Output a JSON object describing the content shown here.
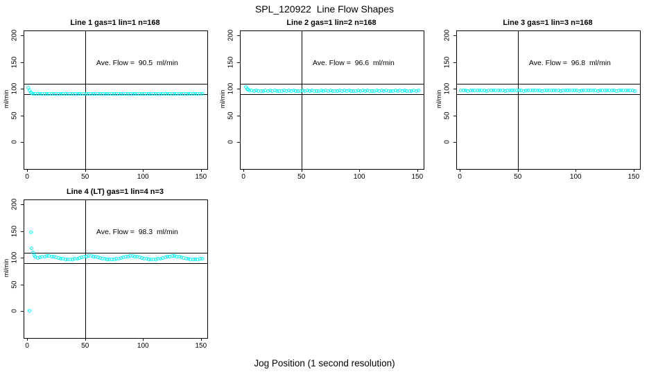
{
  "main_title": "SPL_120922  Line Flow Shapes",
  "xlabel": "Jog Position (1 second resolution)",
  "point_color": "#00FFFF",
  "chart_data": [
    {
      "type": "scatter",
      "title": "Line 1 gas=1 lin=1 n=168",
      "annotation": "Ave. Flow =  90.5  ml/min",
      "ave_flow_ml_min": 90.5,
      "ylabel": "ml/min",
      "x_ticks": [
        0,
        50,
        100,
        150
      ],
      "y_ticks": [
        0,
        50,
        100,
        150,
        200
      ],
      "xlim": [
        -2.5,
        155.5
      ],
      "ylim": [
        -50,
        208
      ],
      "vline": 50,
      "hlines": [
        90,
        110
      ],
      "legend": "none",
      "grid": false,
      "points": [
        [
          1,
          102.2
        ],
        [
          2,
          96.8
        ],
        [
          3,
          93.2
        ],
        [
          4,
          91.4
        ],
        [
          5,
          90.7
        ],
        [
          7,
          90.7
        ],
        [
          9,
          90.2
        ],
        [
          11,
          90.6
        ],
        [
          13,
          90.1
        ],
        [
          15,
          90.5
        ],
        [
          17,
          90.3
        ],
        [
          19,
          90.8
        ],
        [
          21,
          90.2
        ],
        [
          23,
          90.7
        ],
        [
          25,
          90.2
        ],
        [
          27,
          90.6
        ],
        [
          29,
          90.1
        ],
        [
          31,
          90.5
        ],
        [
          33,
          90.3
        ],
        [
          35,
          90.8
        ],
        [
          37,
          90.2
        ],
        [
          39,
          90.7
        ],
        [
          41,
          90.2
        ],
        [
          43,
          90.6
        ],
        [
          45,
          90.1
        ],
        [
          47,
          90.5
        ],
        [
          49,
          90.3
        ],
        [
          51,
          90.8
        ],
        [
          53,
          90.2
        ],
        [
          55,
          90.7
        ],
        [
          57,
          90.2
        ],
        [
          59,
          90.6
        ],
        [
          61,
          90.1
        ],
        [
          63,
          90.5
        ],
        [
          65,
          90.3
        ],
        [
          67,
          90.8
        ],
        [
          69,
          90.2
        ],
        [
          71,
          90.7
        ],
        [
          73,
          90.2
        ],
        [
          75,
          90.6
        ],
        [
          77,
          90.1
        ],
        [
          79,
          90.5
        ],
        [
          81,
          90.3
        ],
        [
          83,
          90.8
        ],
        [
          85,
          90.2
        ],
        [
          87,
          90.7
        ],
        [
          89,
          90.2
        ],
        [
          91,
          90.6
        ],
        [
          93,
          90.1
        ],
        [
          95,
          90.5
        ],
        [
          97,
          90.3
        ],
        [
          99,
          90.8
        ],
        [
          101,
          90.2
        ],
        [
          103,
          90.7
        ],
        [
          105,
          90.2
        ],
        [
          107,
          90.6
        ],
        [
          109,
          90.1
        ],
        [
          111,
          90.5
        ],
        [
          113,
          90.3
        ],
        [
          115,
          90.8
        ],
        [
          117,
          90.2
        ],
        [
          119,
          90.7
        ],
        [
          121,
          90.2
        ],
        [
          123,
          90.6
        ],
        [
          125,
          90.1
        ],
        [
          127,
          90.5
        ],
        [
          129,
          90.3
        ],
        [
          131,
          90.8
        ],
        [
          133,
          90.2
        ],
        [
          135,
          90.7
        ],
        [
          137,
          90.2
        ],
        [
          139,
          90.6
        ],
        [
          141,
          90.1
        ],
        [
          143,
          90.5
        ],
        [
          145,
          90.3
        ],
        [
          147,
          90.8
        ],
        [
          149,
          90.2
        ],
        [
          151,
          90.7
        ]
      ]
    },
    {
      "type": "scatter",
      "title": "Line 2 gas=1 lin=2 n=168",
      "annotation": "Ave. Flow =  96.6  ml/min",
      "ave_flow_ml_min": 96.6,
      "ylabel": "ml/min",
      "x_ticks": [
        0,
        50,
        100,
        150
      ],
      "y_ticks": [
        0,
        50,
        100,
        150,
        200
      ],
      "xlim": [
        -2.5,
        155.5
      ],
      "ylim": [
        -50,
        208
      ],
      "vline": 50,
      "hlines": [
        90,
        110
      ],
      "legend": "none",
      "grid": false,
      "points": [
        [
          2,
          103.6
        ],
        [
          3,
          100.2
        ],
        [
          4,
          98.3
        ],
        [
          5,
          97.2
        ],
        [
          7,
          96.7
        ],
        [
          9,
          96.2
        ],
        [
          11,
          96.6
        ],
        [
          13,
          96.1
        ],
        [
          15,
          96.5
        ],
        [
          17,
          96.3
        ],
        [
          19,
          96.8
        ],
        [
          21,
          96.2
        ],
        [
          23,
          96.7
        ],
        [
          25,
          96.2
        ],
        [
          27,
          96.6
        ],
        [
          29,
          96.1
        ],
        [
          31,
          96.5
        ],
        [
          33,
          96.3
        ],
        [
          35,
          96.8
        ],
        [
          37,
          96.2
        ],
        [
          39,
          96.7
        ],
        [
          41,
          96.2
        ],
        [
          43,
          96.6
        ],
        [
          45,
          96.1
        ],
        [
          47,
          96.5
        ],
        [
          49,
          96.3
        ],
        [
          51,
          96.8
        ],
        [
          53,
          96.2
        ],
        [
          55,
          96.7
        ],
        [
          57,
          96.2
        ],
        [
          59,
          96.6
        ],
        [
          61,
          96.1
        ],
        [
          63,
          96.5
        ],
        [
          65,
          96.3
        ],
        [
          67,
          96.8
        ],
        [
          69,
          96.2
        ],
        [
          71,
          96.7
        ],
        [
          73,
          96.2
        ],
        [
          75,
          96.6
        ],
        [
          77,
          96.1
        ],
        [
          79,
          96.5
        ],
        [
          81,
          96.3
        ],
        [
          83,
          96.8
        ],
        [
          85,
          96.2
        ],
        [
          87,
          96.7
        ],
        [
          89,
          96.2
        ],
        [
          91,
          96.6
        ],
        [
          93,
          96.1
        ],
        [
          95,
          96.5
        ],
        [
          97,
          96.3
        ],
        [
          99,
          96.8
        ],
        [
          101,
          96.2
        ],
        [
          103,
          96.7
        ],
        [
          105,
          96.2
        ],
        [
          107,
          96.6
        ],
        [
          109,
          96.1
        ],
        [
          111,
          96.5
        ],
        [
          113,
          96.3
        ],
        [
          115,
          96.8
        ],
        [
          117,
          96.2
        ],
        [
          119,
          96.7
        ],
        [
          121,
          96.2
        ],
        [
          123,
          96.6
        ],
        [
          125,
          96.1
        ],
        [
          127,
          96.5
        ],
        [
          129,
          96.3
        ],
        [
          131,
          96.8
        ],
        [
          133,
          96.2
        ],
        [
          135,
          96.7
        ],
        [
          137,
          96.2
        ],
        [
          139,
          96.6
        ],
        [
          141,
          96.1
        ],
        [
          143,
          96.5
        ],
        [
          145,
          96.3
        ],
        [
          147,
          96.8
        ],
        [
          149,
          96.2
        ],
        [
          151,
          96.7
        ]
      ]
    },
    {
      "type": "scatter",
      "title": "Line 3 gas=1 lin=3 n=168",
      "annotation": "Ave. Flow =  96.8  ml/min",
      "ave_flow_ml_min": 96.8,
      "ylabel": "ml/min",
      "x_ticks": [
        0,
        50,
        100,
        150
      ],
      "y_ticks": [
        0,
        50,
        100,
        150,
        200
      ],
      "xlim": [
        -2.5,
        155.5
      ],
      "ylim": [
        -50,
        208
      ],
      "vline": 50,
      "hlines": [
        90,
        110
      ],
      "legend": "none",
      "grid": false,
      "points": [
        [
          1,
          97.1
        ],
        [
          3,
          96.6
        ],
        [
          5,
          97.0
        ],
        [
          7,
          96.5
        ],
        [
          9,
          96.9
        ],
        [
          11,
          96.7
        ],
        [
          13,
          97.2
        ],
        [
          15,
          96.6
        ],
        [
          17,
          97.1
        ],
        [
          19,
          96.6
        ],
        [
          21,
          97.0
        ],
        [
          23,
          96.5
        ],
        [
          25,
          96.9
        ],
        [
          27,
          96.7
        ],
        [
          29,
          97.2
        ],
        [
          31,
          96.6
        ],
        [
          33,
          97.1
        ],
        [
          35,
          96.6
        ],
        [
          37,
          97.0
        ],
        [
          39,
          96.5
        ],
        [
          41,
          96.9
        ],
        [
          43,
          96.7
        ],
        [
          45,
          97.2
        ],
        [
          47,
          96.6
        ],
        [
          49,
          97.1
        ],
        [
          51,
          96.6
        ],
        [
          53,
          97.0
        ],
        [
          55,
          96.5
        ],
        [
          57,
          96.9
        ],
        [
          59,
          96.7
        ],
        [
          61,
          97.2
        ],
        [
          63,
          96.6
        ],
        [
          65,
          97.1
        ],
        [
          67,
          96.6
        ],
        [
          69,
          97.0
        ],
        [
          71,
          96.5
        ],
        [
          73,
          96.9
        ],
        [
          75,
          96.7
        ],
        [
          77,
          97.2
        ],
        [
          79,
          96.6
        ],
        [
          81,
          97.1
        ],
        [
          83,
          96.6
        ],
        [
          85,
          97.0
        ],
        [
          87,
          96.5
        ],
        [
          89,
          96.9
        ],
        [
          91,
          96.7
        ],
        [
          93,
          97.2
        ],
        [
          95,
          96.6
        ],
        [
          97,
          97.1
        ],
        [
          99,
          96.6
        ],
        [
          101,
          97.0
        ],
        [
          103,
          96.5
        ],
        [
          105,
          96.9
        ],
        [
          107,
          96.7
        ],
        [
          109,
          97.2
        ],
        [
          111,
          96.6
        ],
        [
          113,
          97.1
        ],
        [
          115,
          96.6
        ],
        [
          117,
          97.0
        ],
        [
          119,
          96.5
        ],
        [
          121,
          96.9
        ],
        [
          123,
          96.7
        ],
        [
          125,
          97.2
        ],
        [
          127,
          96.6
        ],
        [
          129,
          97.1
        ],
        [
          131,
          96.6
        ],
        [
          133,
          97.0
        ],
        [
          135,
          96.5
        ],
        [
          137,
          96.9
        ],
        [
          139,
          96.7
        ],
        [
          141,
          97.2
        ],
        [
          143,
          96.6
        ],
        [
          145,
          97.1
        ],
        [
          147,
          96.6
        ],
        [
          149,
          97.0
        ],
        [
          151,
          96.5
        ]
      ]
    },
    {
      "type": "scatter",
      "title": "Line 4 (LT) gas=1 lin=4 n=3",
      "annotation": "Ave. Flow =  98.3  ml/min",
      "ave_flow_ml_min": 98.3,
      "ylabel": "ml/min",
      "x_ticks": [
        0,
        50,
        100,
        150
      ],
      "y_ticks": [
        0,
        50,
        100,
        150,
        200
      ],
      "xlim": [
        -2.5,
        155.5
      ],
      "ylim": [
        -50,
        208
      ],
      "vline": 50,
      "hlines": [
        90,
        110
      ],
      "legend": "none",
      "grid": false,
      "points": [
        [
          2,
          1
        ],
        [
          3,
          148
        ],
        [
          4,
          118
        ],
        [
          5,
          110
        ],
        [
          6,
          105
        ],
        [
          7,
          102
        ],
        [
          9,
          100.0
        ],
        [
          11,
          101.1
        ],
        [
          13,
          102.1
        ],
        [
          15,
          102.8
        ],
        [
          17,
          103.2
        ],
        [
          19,
          103.2
        ],
        [
          21,
          102.8
        ],
        [
          23,
          102.1
        ],
        [
          25,
          101.1
        ],
        [
          27,
          100.0
        ],
        [
          29,
          98.9
        ],
        [
          31,
          97.9
        ],
        [
          33,
          97.2
        ],
        [
          35,
          96.8
        ],
        [
          37,
          96.8
        ],
        [
          39,
          97.2
        ],
        [
          41,
          97.9
        ],
        [
          43,
          98.9
        ],
        [
          45,
          100.0
        ],
        [
          47,
          101.1
        ],
        [
          49,
          102.1
        ],
        [
          51,
          102.8
        ],
        [
          53,
          103.2
        ],
        [
          55,
          103.2
        ],
        [
          57,
          102.8
        ],
        [
          59,
          102.1
        ],
        [
          61,
          101.1
        ],
        [
          63,
          100.0
        ],
        [
          65,
          98.9
        ],
        [
          67,
          97.9
        ],
        [
          69,
          97.2
        ],
        [
          71,
          96.8
        ],
        [
          73,
          96.8
        ],
        [
          75,
          97.2
        ],
        [
          77,
          97.9
        ],
        [
          79,
          98.9
        ],
        [
          81,
          100.0
        ],
        [
          83,
          101.1
        ],
        [
          85,
          102.1
        ],
        [
          87,
          102.8
        ],
        [
          89,
          103.2
        ],
        [
          91,
          103.2
        ],
        [
          93,
          102.8
        ],
        [
          95,
          102.1
        ],
        [
          97,
          101.1
        ],
        [
          99,
          100.0
        ],
        [
          101,
          98.9
        ],
        [
          103,
          97.9
        ],
        [
          105,
          97.2
        ],
        [
          107,
          96.8
        ],
        [
          109,
          96.8
        ],
        [
          111,
          97.2
        ],
        [
          113,
          97.9
        ],
        [
          115,
          98.9
        ],
        [
          117,
          100.0
        ],
        [
          119,
          101.1
        ],
        [
          121,
          102.1
        ],
        [
          123,
          102.8
        ],
        [
          125,
          103.2
        ],
        [
          127,
          103.2
        ],
        [
          129,
          102.8
        ],
        [
          131,
          102.1
        ],
        [
          133,
          101.1
        ],
        [
          135,
          100.0
        ],
        [
          137,
          98.9
        ],
        [
          139,
          97.9
        ],
        [
          141,
          97.2
        ],
        [
          143,
          96.8
        ],
        [
          145,
          96.8
        ],
        [
          147,
          97.2
        ],
        [
          149,
          97.9
        ],
        [
          151,
          98.9
        ]
      ]
    }
  ]
}
